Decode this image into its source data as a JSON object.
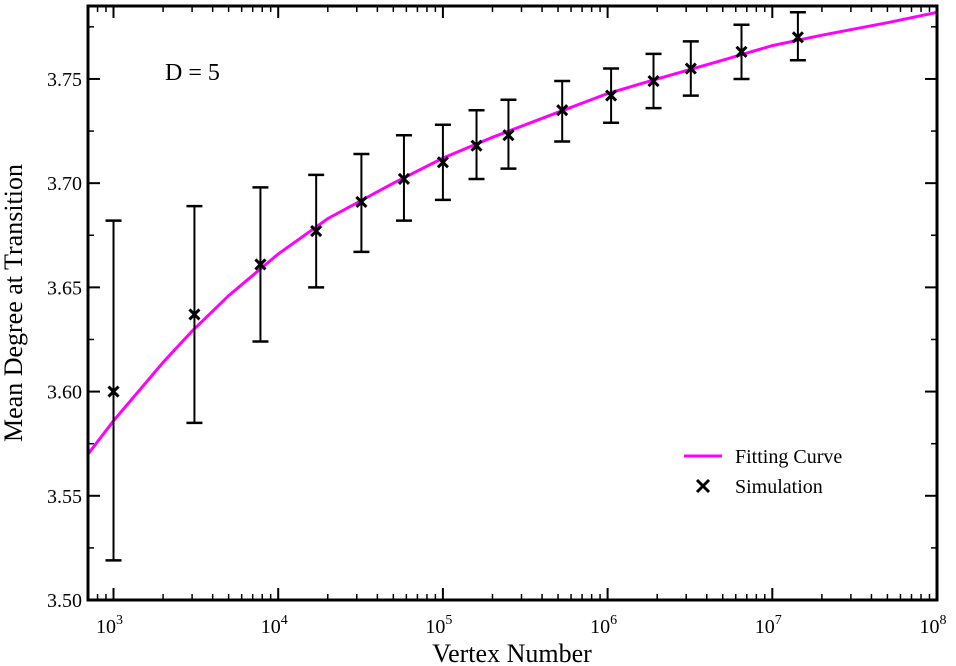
{
  "chart_data": {
    "type": "scatter",
    "title": "",
    "xlabel": "Vertex Number",
    "ylabel": "Mean Degree at Transition",
    "x_scale": "log",
    "xlim": [
      700,
      100000000
    ],
    "ylim": [
      3.5,
      3.785
    ],
    "x_ticks": [
      {
        "value": 1000,
        "base": "10",
        "exp": "3"
      },
      {
        "value": 10000,
        "base": "10",
        "exp": "4"
      },
      {
        "value": 100000,
        "base": "10",
        "exp": "5"
      },
      {
        "value": 1000000,
        "base": "10",
        "exp": "6"
      },
      {
        "value": 10000000,
        "base": "10",
        "exp": "7"
      },
      {
        "value": 100000000,
        "base": "10",
        "exp": "8"
      }
    ],
    "y_ticks": [
      {
        "value": 3.5,
        "label": "3.50"
      },
      {
        "value": 3.55,
        "label": "3.55"
      },
      {
        "value": 3.6,
        "label": "3.60"
      },
      {
        "value": 3.65,
        "label": "3.65"
      },
      {
        "value": 3.7,
        "label": "3.70"
      },
      {
        "value": 3.75,
        "label": "3.75"
      }
    ],
    "annotation": "D = 5",
    "legend": {
      "position": "bottom-right",
      "entries": [
        {
          "label": "Fitting Curve",
          "kind": "line",
          "color": "#ff00ff"
        },
        {
          "label": "Simulation",
          "kind": "x-marker",
          "color": "#000000"
        }
      ]
    },
    "series": [
      {
        "name": "Simulation",
        "kind": "scatter",
        "color": "#000000",
        "points": [
          {
            "x": 1000,
            "y": 3.6,
            "ylow": 3.519,
            "yhigh": 3.682
          },
          {
            "x": 3100,
            "y": 3.637,
            "ylow": 3.585,
            "yhigh": 3.689
          },
          {
            "x": 7800,
            "y": 3.661,
            "ylow": 3.624,
            "yhigh": 3.698
          },
          {
            "x": 17000,
            "y": 3.677,
            "ylow": 3.65,
            "yhigh": 3.704
          },
          {
            "x": 32000,
            "y": 3.691,
            "ylow": 3.667,
            "yhigh": 3.714
          },
          {
            "x": 58000,
            "y": 3.702,
            "ylow": 3.682,
            "yhigh": 3.723
          },
          {
            "x": 100000,
            "y": 3.71,
            "ylow": 3.692,
            "yhigh": 3.728
          },
          {
            "x": 160000,
            "y": 3.718,
            "ylow": 3.702,
            "yhigh": 3.735
          },
          {
            "x": 250000,
            "y": 3.723,
            "ylow": 3.707,
            "yhigh": 3.74
          },
          {
            "x": 530000,
            "y": 3.735,
            "ylow": 3.72,
            "yhigh": 3.749
          },
          {
            "x": 1050000,
            "y": 3.742,
            "ylow": 3.729,
            "yhigh": 3.755
          },
          {
            "x": 1900000,
            "y": 3.749,
            "ylow": 3.736,
            "yhigh": 3.762
          },
          {
            "x": 3200000,
            "y": 3.755,
            "ylow": 3.742,
            "yhigh": 3.768
          },
          {
            "x": 6500000,
            "y": 3.763,
            "ylow": 3.75,
            "yhigh": 3.776
          },
          {
            "x": 14300000,
            "y": 3.77,
            "ylow": 3.759,
            "yhigh": 3.782
          }
        ]
      },
      {
        "name": "Fitting Curve",
        "kind": "line",
        "color": "#ff00ff",
        "points": [
          {
            "x": 700,
            "y": 3.57
          },
          {
            "x": 1000,
            "y": 3.586
          },
          {
            "x": 2000,
            "y": 3.614
          },
          {
            "x": 3000,
            "y": 3.629
          },
          {
            "x": 5000,
            "y": 3.646
          },
          {
            "x": 10000,
            "y": 3.666
          },
          {
            "x": 20000,
            "y": 3.683
          },
          {
            "x": 50000,
            "y": 3.7
          },
          {
            "x": 100000,
            "y": 3.712
          },
          {
            "x": 200000,
            "y": 3.722
          },
          {
            "x": 500000,
            "y": 3.734
          },
          {
            "x": 1000000,
            "y": 3.743
          },
          {
            "x": 2000000,
            "y": 3.75
          },
          {
            "x": 5000000,
            "y": 3.759
          },
          {
            "x": 10000000,
            "y": 3.766
          },
          {
            "x": 20000000,
            "y": 3.771
          },
          {
            "x": 50000000,
            "y": 3.777
          },
          {
            "x": 100000000,
            "y": 3.782
          }
        ]
      }
    ]
  }
}
